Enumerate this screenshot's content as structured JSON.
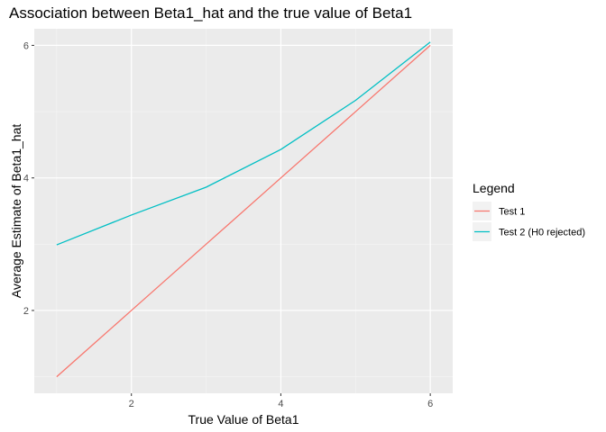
{
  "chart_data": {
    "type": "line",
    "title": "Association between Beta1_hat and the true value of Beta1",
    "xlabel": "True Value of Beta1",
    "ylabel": "Average Estimate of Beta1_hat",
    "x": [
      1,
      2,
      3,
      4,
      5,
      6
    ],
    "xlim": [
      0.7,
      6.3
    ],
    "ylim": [
      0.75,
      6.25
    ],
    "x_ticks": [
      2,
      4,
      6
    ],
    "y_ticks": [
      2,
      4,
      6
    ],
    "x_tick_labels": [
      "2",
      "4",
      "6"
    ],
    "y_tick_labels": [
      "2",
      "4",
      "6"
    ],
    "grid": true,
    "legend": {
      "title": "Legend",
      "position": "right"
    },
    "series": [
      {
        "name": "Test 1",
        "color": "#F8766D",
        "values": [
          1.0,
          2.0,
          3.0,
          4.0,
          5.0,
          6.0
        ]
      },
      {
        "name": "Test 2 (H0 rejected)",
        "color": "#00BFC4",
        "values": [
          2.99,
          3.44,
          3.86,
          4.43,
          5.17,
          6.05
        ]
      }
    ],
    "colors": {
      "panel": "#EBEBEB",
      "grid_major": "#FFFFFF",
      "grid_minor": "#F5F5F5",
      "tick": "#333333"
    }
  }
}
